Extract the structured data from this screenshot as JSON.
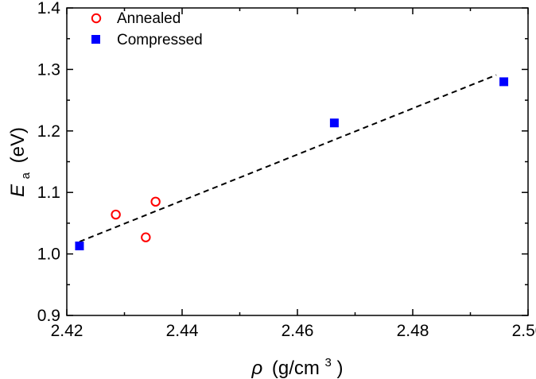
{
  "chart_data": {
    "type": "scatter",
    "title": "",
    "xlabel": {
      "symbol": "ρ",
      "unit_prefix": "(g/cm",
      "unit_exp": "3",
      "unit_suffix": ")"
    },
    "ylabel": {
      "symbol": "E",
      "subscript": "a",
      "unit": "(eV)"
    },
    "xlim": [
      2.42,
      2.5
    ],
    "ylim": [
      0.9,
      1.4
    ],
    "xticks": [
      2.42,
      2.44,
      2.46,
      2.48,
      2.5
    ],
    "xtick_labels": [
      "2.42",
      "2.44",
      "2.46",
      "2.48",
      "2.50"
    ],
    "yticks": [
      0.9,
      1.0,
      1.1,
      1.2,
      1.3,
      1.4
    ],
    "ytick_labels": [
      "0.9",
      "1.0",
      "1.1",
      "1.2",
      "1.3",
      "1.4"
    ],
    "grid": false,
    "legend_position": "top-left",
    "series": [
      {
        "name": "Annealed",
        "marker": "open-circle",
        "color": "#ff0000",
        "x": [
          2.4285,
          2.4337,
          2.4354
        ],
        "y": [
          1.064,
          1.027,
          1.085
        ]
      },
      {
        "name": "Compressed",
        "marker": "filled-square",
        "color": "#0000ff",
        "x": [
          2.4222,
          2.4664,
          2.4958
        ],
        "y": [
          1.013,
          1.213,
          1.28
        ]
      }
    ],
    "fit_line": {
      "style": "dashed",
      "color": "#000000",
      "x": [
        2.4222,
        2.4945
      ],
      "y": [
        1.02,
        1.291
      ]
    }
  }
}
